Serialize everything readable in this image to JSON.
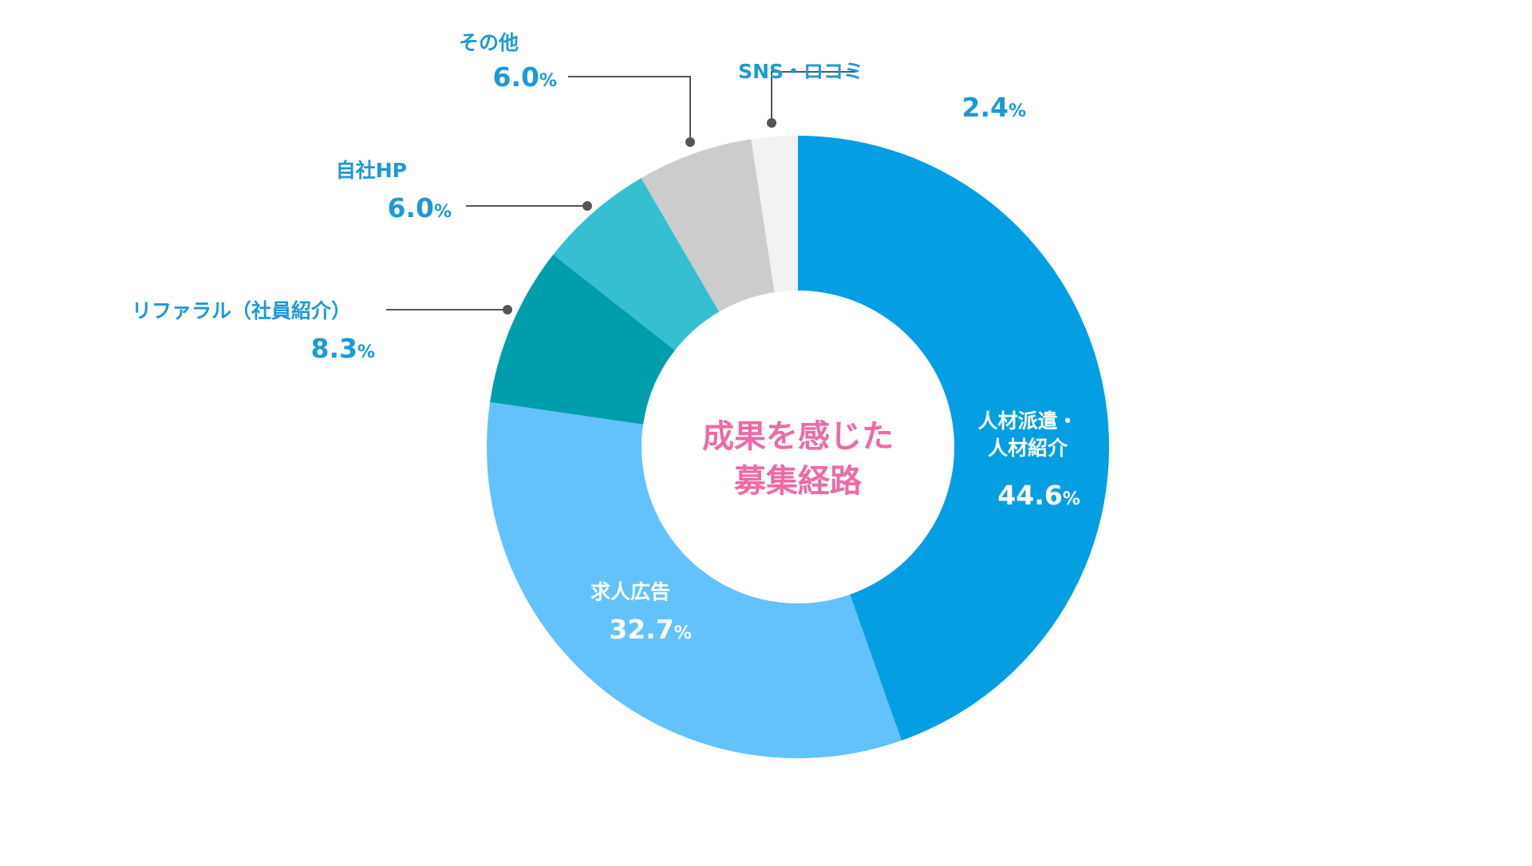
{
  "chart_data": {
    "type": "pie",
    "variant": "donut",
    "center_text": [
      "成果を感じた",
      "募集経路"
    ],
    "center_text_color": "#ee6aa7",
    "label_color": "#1a9ad6",
    "inside_label_color": "#ffffff",
    "leader_line_color": "#555555",
    "percent_suffix": "%",
    "slices": [
      {
        "name_lines": [
          "人材派遣・",
          "人材紹介"
        ],
        "value": 44.6,
        "value_label": "44.6",
        "color": "#049fe3",
        "label_style": "inside"
      },
      {
        "name_lines": [
          "求人広告"
        ],
        "value": 32.7,
        "value_label": "32.7",
        "color": "#63c2fb",
        "label_style": "inside"
      },
      {
        "name_lines": [
          "リファラル（社員紹介）"
        ],
        "value": 8.3,
        "value_label": "8.3",
        "color": "#009ead",
        "label_style": "outside"
      },
      {
        "name_lines": [
          "自社HP"
        ],
        "value": 6.0,
        "value_label": "6.0",
        "color": "#35bfd1",
        "label_style": "outside"
      },
      {
        "name_lines": [
          "その他"
        ],
        "value": 6.0,
        "value_label": "6.0",
        "color": "#cccccc",
        "label_style": "outside"
      },
      {
        "name_lines": [
          "SNS・ロコミ"
        ],
        "value": 2.4,
        "value_label": "2.4",
        "color": "#f2f2f2",
        "label_style": "outside"
      }
    ]
  }
}
